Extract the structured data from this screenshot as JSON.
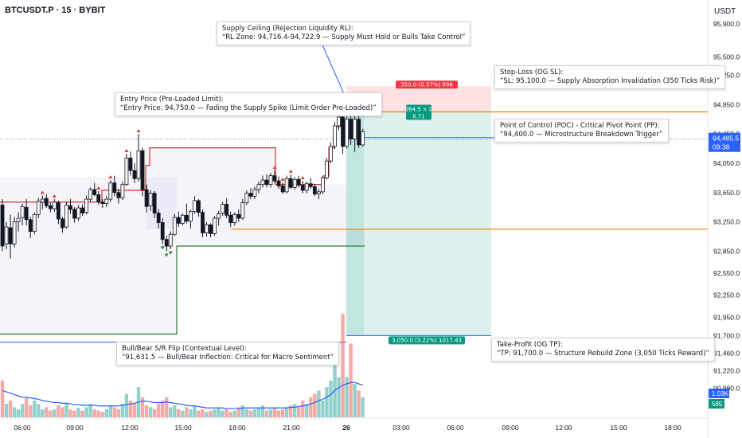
{
  "header": {
    "symbol": "BTCUSDT.P · 15 · BYBIT",
    "currency": "USDT"
  },
  "colors": {
    "up": "#089981",
    "down": "#f23645",
    "orange": "#f57c00",
    "blue": "#2962ff",
    "green_line": "#2e7d32",
    "marker": "#e53935"
  },
  "annotations": [
    {
      "id": "supply-ceiling",
      "line1": "Supply Ceiling (Rejection Liquidity RL):",
      "line2": "“RL Zone: 94,716.4-94,722.9 — Supply Must Hold or Bulls Take Control”"
    },
    {
      "id": "entry-price",
      "line1": "Entry Price (Pre-Loaded Limit):",
      "line2": "“Entry Price: 94,750.0 — Fading the Supply Spike (Limit Order Pre-Loaded)”"
    },
    {
      "id": "stop-loss",
      "line1": "Stop-Loss (OG SL):",
      "line2": "“SL: 95,100.0 — Supply Absorption Invalidation (350 Ticks Risk)”"
    },
    {
      "id": "poc",
      "line1": "Point of Control (POC) - Critical Pivot Point (PP):",
      "line2": "“94,400.0 — Microstructure Breakdown Trigger”"
    },
    {
      "id": "bull-bear-flip",
      "line1": "Bull/Bear S/R Flip (Contextual Level):",
      "line2": "“91,631.5 — Bull/Bear Inflection: Critical for Macro Sentiment”"
    },
    {
      "id": "take-profit",
      "line1": "Take-Profit (OG TP):",
      "line2": "“TP: 91,700.0 — Structure Rebuild Zone (3,050 Ticks Reward)”"
    }
  ],
  "chart_data": {
    "type": "candlestick",
    "x_ticks": [
      "06:00",
      "09:00",
      "12:00",
      "15:00",
      "18:00",
      "21:00",
      "26",
      "03:00",
      "06:00",
      "09:00",
      "12:00",
      "15:00",
      "18:00"
    ],
    "y_ticks": [
      95500,
      95250,
      94850,
      94450,
      94050,
      93650,
      93250,
      92850,
      92550,
      92250,
      91950,
      91700,
      91460,
      91220,
      90980
    ],
    "y_top_partial_label": "95,900.0",
    "ylim": [
      90900,
      95950
    ],
    "current_price": {
      "value": "94,485.5",
      "countdown": "09:38"
    },
    "volume_badges": {
      "volume_ma": "1.03K",
      "volume": "585"
    },
    "levels": {
      "entry": 94750,
      "stop_loss": 95100,
      "take_profit": 91700,
      "poc": 94400,
      "orange_lower": 93150,
      "bull_bear_flip": 91631.5
    },
    "position": {
      "risk_label": "350.0 (0.37%) 998",
      "reward_label": "3,050.0 (3.22%) 1017.43",
      "center_label_1": "264.5 × 0",
      "center_label_2": "8.71"
    },
    "candles": [
      [
        93480,
        93560,
        92850,
        92920
      ],
      [
        92950,
        93250,
        92880,
        93180
      ],
      [
        93170,
        93350,
        92750,
        92950
      ],
      [
        92950,
        93320,
        92900,
        93250
      ],
      [
        93250,
        93380,
        93120,
        93300
      ],
      [
        93310,
        93500,
        93200,
        93460
      ],
      [
        93450,
        93560,
        93200,
        93280
      ],
      [
        93280,
        93320,
        93030,
        93120
      ],
      [
        93120,
        93380,
        93080,
        93350
      ],
      [
        93350,
        93580,
        93300,
        93530
      ],
      [
        93520,
        93610,
        93420,
        93560
      ],
      [
        93570,
        93630,
        93440,
        93470
      ],
      [
        93470,
        93510,
        93380,
        93430
      ],
      [
        93430,
        93560,
        93390,
        93520
      ],
      [
        93510,
        93540,
        93220,
        93290
      ],
      [
        93290,
        93320,
        93100,
        93170
      ],
      [
        93180,
        93530,
        93160,
        93480
      ],
      [
        93470,
        93560,
        93360,
        93420
      ],
      [
        93420,
        93450,
        93240,
        93300
      ],
      [
        93300,
        93480,
        93260,
        93440
      ],
      [
        93440,
        93490,
        93330,
        93370
      ],
      [
        93380,
        93610,
        93350,
        93560
      ],
      [
        93560,
        93720,
        93520,
        93690
      ],
      [
        93690,
        93780,
        93600,
        93620
      ],
      [
        93620,
        93670,
        93480,
        93520
      ],
      [
        93520,
        93560,
        93440,
        93500
      ],
      [
        93500,
        93600,
        93450,
        93560
      ],
      [
        93560,
        93820,
        93520,
        93780
      ],
      [
        93780,
        93880,
        93600,
        93650
      ],
      [
        93650,
        93700,
        93500,
        93580
      ],
      [
        93580,
        93800,
        93550,
        93760
      ],
      [
        93760,
        94180,
        93740,
        94120
      ],
      [
        94120,
        94210,
        93880,
        93950
      ],
      [
        93950,
        94050,
        93780,
        93840
      ],
      [
        93840,
        94450,
        93800,
        94220
      ],
      [
        94220,
        94260,
        93600,
        93690
      ],
      [
        93690,
        93760,
        93380,
        93460
      ],
      [
        93470,
        93680,
        93400,
        93640
      ],
      [
        93640,
        93670,
        93300,
        93370
      ],
      [
        93370,
        93420,
        93160,
        93240
      ],
      [
        93240,
        93300,
        92950,
        93010
      ],
      [
        93010,
        93060,
        92850,
        92920
      ],
      [
        92920,
        93120,
        92880,
        93080
      ],
      [
        93080,
        93360,
        93060,
        93310
      ],
      [
        93310,
        93390,
        93180,
        93230
      ],
      [
        93230,
        93370,
        93200,
        93340
      ],
      [
        93340,
        93500,
        93230,
        93260
      ],
      [
        93260,
        93420,
        93160,
        93390
      ],
      [
        93390,
        93600,
        93360,
        93540
      ],
      [
        93540,
        93560,
        93320,
        93380
      ],
      [
        93380,
        93420,
        93040,
        93100
      ],
      [
        93100,
        93250,
        93050,
        93210
      ],
      [
        93210,
        93230,
        93040,
        93090
      ],
      [
        93090,
        93330,
        93060,
        93300
      ],
      [
        93300,
        93400,
        93200,
        93360
      ],
      [
        93370,
        93520,
        93330,
        93490
      ],
      [
        93490,
        93570,
        93300,
        93340
      ],
      [
        93340,
        93390,
        93180,
        93240
      ],
      [
        93240,
        93380,
        93200,
        93350
      ],
      [
        93350,
        93420,
        93250,
        93300
      ],
      [
        93300,
        93560,
        93280,
        93510
      ],
      [
        93510,
        93680,
        93480,
        93640
      ],
      [
        93640,
        93710,
        93560,
        93600
      ],
      [
        93600,
        93730,
        93560,
        93690
      ],
      [
        93690,
        93800,
        93640,
        93760
      ],
      [
        93760,
        93880,
        93720,
        93820
      ],
      [
        93820,
        93900,
        93720,
        93760
      ],
      [
        93760,
        93920,
        93720,
        93880
      ],
      [
        93880,
        93950,
        93780,
        93810
      ],
      [
        93810,
        93870,
        93700,
        93740
      ],
      [
        93740,
        93790,
        93630,
        93660
      ],
      [
        93660,
        93880,
        93640,
        93840
      ],
      [
        93840,
        93900,
        93700,
        93720
      ],
      [
        93720,
        93860,
        93690,
        93830
      ],
      [
        93830,
        93880,
        93720,
        93750
      ],
      [
        93750,
        93810,
        93640,
        93680
      ],
      [
        93680,
        93800,
        93640,
        93770
      ],
      [
        93770,
        93850,
        93700,
        93730
      ],
      [
        93730,
        93770,
        93600,
        93630
      ],
      [
        93630,
        93700,
        93560,
        93660
      ],
      [
        93660,
        93880,
        93630,
        93850
      ],
      [
        93850,
        94120,
        93830,
        94080
      ],
      [
        94080,
        94330,
        94050,
        94280
      ],
      [
        94280,
        94610,
        94240,
        94560
      ],
      [
        94560,
        94950,
        94500,
        94680
      ],
      [
        94680,
        94740,
        94180,
        94280
      ],
      [
        94280,
        94720,
        94250,
        94650
      ],
      [
        94650,
        94780,
        94300,
        94380
      ],
      [
        94380,
        94740,
        94200,
        94650
      ],
      [
        94650,
        94700,
        94260,
        94300
      ],
      [
        94300,
        94520,
        94280,
        94480
      ]
    ],
    "volumes": [
      55,
      20,
      25,
      15,
      12,
      20,
      30,
      18,
      25,
      20,
      12,
      15,
      10,
      12,
      18,
      15,
      22,
      12,
      10,
      14,
      10,
      15,
      20,
      12,
      10,
      8,
      12,
      18,
      15,
      12,
      20,
      35,
      25,
      20,
      45,
      30,
      18,
      15,
      12,
      20,
      25,
      30,
      15,
      18,
      12,
      10,
      15,
      12,
      18,
      10,
      12,
      8,
      10,
      12,
      15,
      10,
      12,
      8,
      10,
      15,
      18,
      12,
      10,
      12,
      15,
      18,
      10,
      12,
      15,
      10,
      12,
      15,
      18,
      20,
      15,
      25,
      20,
      30,
      35,
      40,
      25,
      45,
      55,
      80,
      60,
      155,
      60,
      110,
      50,
      40,
      30
    ],
    "volume_ma": [
      40,
      38,
      36,
      34,
      32,
      30,
      30,
      29,
      28,
      27,
      25,
      24,
      23,
      22,
      22,
      21,
      21,
      20,
      19,
      19,
      18,
      18,
      18,
      18,
      17,
      17,
      17,
      17,
      17,
      17,
      18,
      19,
      20,
      21,
      23,
      24,
      24,
      23,
      22,
      22,
      22,
      23,
      22,
      21,
      20,
      19,
      18,
      17,
      17,
      16,
      15,
      14,
      14,
      14,
      14,
      14,
      13,
      13,
      13,
      13,
      14,
      14,
      14,
      14,
      14,
      14,
      14,
      14,
      14,
      14,
      14,
      14,
      15,
      15,
      16,
      17,
      18,
      20,
      22,
      25,
      27,
      30,
      34,
      40,
      44,
      48,
      50,
      52,
      52,
      50,
      48
    ]
  }
}
